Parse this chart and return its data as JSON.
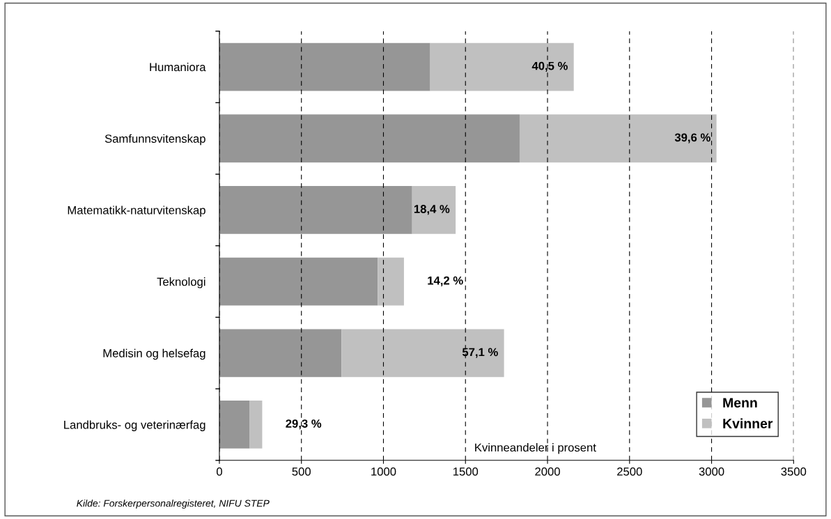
{
  "chart_data": {
    "type": "bar",
    "orientation": "horizontal",
    "stacked": true,
    "categories": [
      "Humaniora",
      "Samfunnsvitenskap",
      "Matematikk-naturvitenskap",
      "Teknologi",
      "Medisin og helsefag",
      "Landbruks- og veterinærfag"
    ],
    "series": [
      {
        "name": "Menn",
        "color": "#969696",
        "values": [
          1285,
          1830,
          1175,
          965,
          745,
          185
        ]
      },
      {
        "name": "Kvinner",
        "color": "#c0c0c0",
        "values": [
          875,
          1200,
          265,
          160,
          990,
          76
        ]
      }
    ],
    "xlim": [
      0,
      3500
    ],
    "xticks": [
      0,
      500,
      1000,
      1500,
      2000,
      2500,
      3000,
      3500
    ],
    "grid": "x",
    "legend": "bottom right",
    "annotations": [
      "Kvinneandeler i prosent",
      "Kilde: Forskerpersonalregisteret, NIFU STEP",
      {
        "text": "40,5 %",
        "x": 2160,
        "y": "Humaniora"
      },
      {
        "text": "39,6 %",
        "x": 3030,
        "y": "Samfunnsvitenskap"
      },
      {
        "text": "18,4 %",
        "x": 1440,
        "y": "Matematikk-naturvitenskap"
      },
      {
        "text": "14,2 %",
        "x": 1125,
        "y": "Teknologi"
      },
      {
        "text": "57,1 %",
        "x": 1735,
        "y": "Medisin og helsefag"
      },
      {
        "text": "29,3 %",
        "x": 261,
        "y": "Landbruks- og veterinærfag"
      }
    ]
  }
}
